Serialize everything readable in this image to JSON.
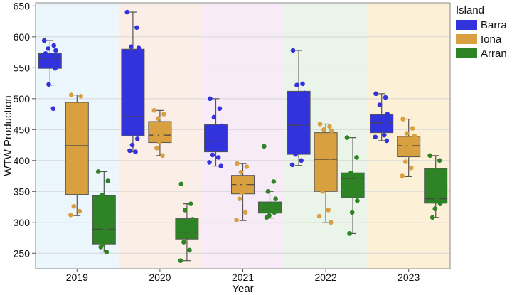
{
  "chart_data": {
    "type": "box",
    "xlabel": "Year",
    "ylabel": "WTW Production",
    "categories": [
      "2019",
      "2020",
      "2021",
      "2022",
      "2023"
    ],
    "ylim": [
      225,
      655
    ],
    "yticks": [
      250,
      300,
      350,
      400,
      450,
      500,
      550,
      600,
      650
    ],
    "grid": true,
    "legend": {
      "title": "Island",
      "position": "right"
    },
    "year_band_colors": [
      "#ecf6fd",
      "#fbeee6",
      "#f7ebf8",
      "#eaf4e8",
      "#fcf1d6"
    ],
    "series": [
      {
        "name": "Barra",
        "color": "#3333dd",
        "boxes": [
          {
            "q1": 549,
            "median": 565,
            "q3": 573,
            "whisker_low": 522,
            "whisker_high": 594
          },
          {
            "q1": 440,
            "median": 471,
            "q3": 580,
            "whisker_low": 414,
            "whisker_high": 640
          },
          {
            "q1": 414,
            "median": 431,
            "q3": 458,
            "whisker_low": 391,
            "whisker_high": 500
          },
          {
            "q1": 410,
            "median": 457,
            "q3": 512,
            "whisker_low": 392,
            "whisker_high": 578
          },
          {
            "q1": 445,
            "median": 461,
            "q3": 474,
            "whisker_low": 432,
            "whisker_high": 508
          }
        ],
        "points": [
          [
            594,
            586,
            581,
            578,
            573,
            570,
            567,
            565,
            562,
            560,
            556,
            549,
            523,
            484
          ],
          [
            640,
            615,
            584,
            582,
            514,
            468,
            435,
            425,
            416,
            414
          ],
          [
            500,
            484,
            470,
            456,
            447,
            440,
            432,
            418,
            409,
            405,
            397,
            391
          ],
          [
            578,
            524,
            522,
            509,
            487,
            470,
            455,
            440,
            410,
            400,
            393
          ],
          [
            508,
            502,
            490,
            475,
            470,
            465,
            461,
            456,
            452,
            441,
            438,
            432
          ]
        ]
      },
      {
        "name": "Iona",
        "color": "#d9a040",
        "boxes": [
          {
            "q1": 345,
            "median": 424,
            "q3": 494,
            "whisker_low": 311,
            "whisker_high": 506
          },
          {
            "q1": 429,
            "median": 441,
            "q3": 463,
            "whisker_low": 408,
            "whisker_high": 481
          },
          {
            "q1": 346,
            "median": 361,
            "q3": 376,
            "whisker_low": 303,
            "whisker_high": 395
          },
          {
            "q1": 350,
            "median": 402,
            "q3": 445,
            "whisker_low": 300,
            "whisker_high": 459
          },
          {
            "q1": 406,
            "median": 424,
            "q3": 439,
            "whisker_low": 374,
            "whisker_high": 467
          }
        ],
        "points": [
          [
            506,
            504,
            478,
            482,
            470,
            443,
            394,
            374,
            326,
            318,
            312
          ],
          [
            481,
            475,
            468,
            458,
            441,
            440,
            435,
            430,
            420,
            408
          ],
          [
            395,
            390,
            381,
            372,
            363,
            361,
            356,
            348,
            338,
            316,
            304
          ],
          [
            459,
            455,
            450,
            448,
            423,
            412,
            398,
            392,
            350,
            320,
            310,
            300
          ],
          [
            467,
            452,
            444,
            440,
            426,
            424,
            418,
            410,
            398,
            388,
            375
          ]
        ]
      },
      {
        "name": "Arran",
        "color": "#2e8424",
        "boxes": [
          {
            "q1": 265,
            "median": 289,
            "q3": 343,
            "whisker_low": 252,
            "whisker_high": 382
          },
          {
            "q1": 273,
            "median": 284,
            "q3": 306,
            "whisker_low": 238,
            "whisker_high": 330
          },
          {
            "q1": 315,
            "median": 320,
            "q3": 333,
            "whisker_low": 307,
            "whisker_high": 350
          },
          {
            "q1": 340,
            "median": 371,
            "q3": 380,
            "whisker_low": 282,
            "whisker_high": 437
          },
          {
            "q1": 331,
            "median": 338,
            "q3": 387,
            "whisker_low": 308,
            "whisker_high": 408
          }
        ],
        "points": [
          [
            382,
            367,
            344,
            330,
            315,
            290,
            276,
            265,
            260,
            252
          ],
          [
            362,
            330,
            320,
            305,
            295,
            290,
            284,
            278,
            268,
            255,
            238
          ],
          [
            423,
            366,
            350,
            338,
            326,
            320,
            316,
            311,
            308
          ],
          [
            437,
            405,
            380,
            371,
            362,
            350,
            335,
            316,
            282
          ],
          [
            408,
            400,
            384,
            370,
            357,
            340,
            330,
            322,
            308
          ]
        ]
      }
    ]
  }
}
